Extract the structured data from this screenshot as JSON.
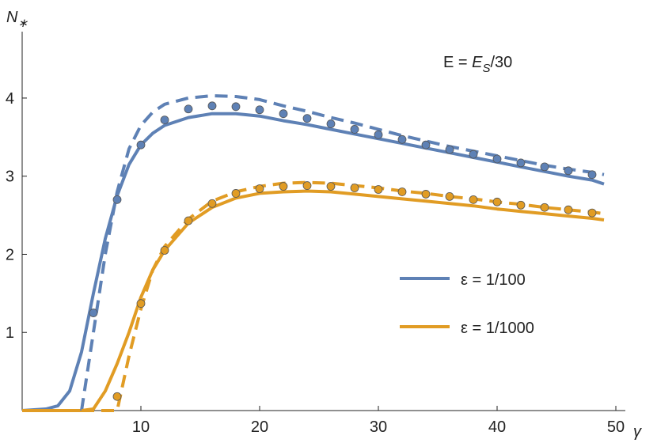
{
  "chart_data": {
    "type": "line",
    "y_label": "N",
    "y_label_sub": "∗",
    "x_label": "γ",
    "annotation": [
      "E = ",
      "E",
      "S",
      "/30"
    ],
    "xlim": [
      0,
      50.8
    ],
    "ylim": [
      0,
      4.85
    ],
    "xticks": [
      10,
      20,
      30,
      40,
      50
    ],
    "yticks": [
      1,
      2,
      3,
      4
    ],
    "legend": "center right",
    "series": [
      {
        "name": "ε = 1/100",
        "color": "#5e81b5",
        "style": "solid",
        "x": [
          0,
          1,
          2,
          3,
          4,
          5,
          6,
          7,
          8,
          9,
          10,
          11,
          12,
          14,
          16,
          18,
          20,
          22,
          24,
          26,
          28,
          30,
          32,
          34,
          36,
          38,
          40,
          42,
          44,
          46,
          48,
          49
        ],
        "values": [
          0,
          0.01,
          0.02,
          0.06,
          0.25,
          0.75,
          1.5,
          2.2,
          2.75,
          3.15,
          3.4,
          3.55,
          3.65,
          3.75,
          3.8,
          3.8,
          3.77,
          3.71,
          3.66,
          3.6,
          3.54,
          3.48,
          3.42,
          3.36,
          3.3,
          3.24,
          3.18,
          3.12,
          3.06,
          3.0,
          2.95,
          2.9
        ]
      },
      {
        "name": "ε = 1/1000",
        "color": "#e19c24",
        "style": "solid",
        "x": [
          0,
          1,
          2,
          3,
          4,
          5,
          6,
          7,
          8,
          9,
          10,
          11,
          12,
          14,
          16,
          18,
          20,
          22,
          24,
          26,
          28,
          30,
          32,
          34,
          36,
          38,
          40,
          42,
          44,
          46,
          48,
          49
        ],
        "values": [
          0,
          0,
          0,
          0,
          0,
          0,
          0.02,
          0.25,
          0.6,
          1.0,
          1.45,
          1.8,
          2.05,
          2.4,
          2.6,
          2.72,
          2.78,
          2.8,
          2.81,
          2.8,
          2.77,
          2.74,
          2.71,
          2.68,
          2.65,
          2.62,
          2.58,
          2.55,
          2.52,
          2.49,
          2.46,
          2.44
        ]
      },
      {
        "color": "#5e81b5",
        "style": "dashed",
        "x": [
          0,
          5,
          6,
          7,
          8,
          9,
          10,
          11,
          12,
          14,
          16,
          18,
          20,
          22,
          24,
          26,
          28,
          30,
          32,
          34,
          36,
          38,
          40,
          42,
          44,
          46,
          48,
          49
        ],
        "values": [
          0,
          0,
          1.0,
          2.0,
          2.8,
          3.35,
          3.65,
          3.82,
          3.92,
          4.0,
          4.03,
          4.02,
          3.98,
          3.9,
          3.83,
          3.75,
          3.68,
          3.6,
          3.52,
          3.45,
          3.38,
          3.32,
          3.26,
          3.2,
          3.14,
          3.09,
          3.05,
          3.02
        ]
      },
      {
        "color": "#e19c24",
        "style": "dashed",
        "x": [
          0,
          8,
          9,
          10,
          11,
          12,
          14,
          16,
          18,
          20,
          22,
          24,
          26,
          28,
          30,
          32,
          34,
          36,
          38,
          40,
          42,
          44,
          46,
          48,
          49
        ],
        "values": [
          0,
          0,
          0.7,
          1.3,
          1.8,
          2.1,
          2.45,
          2.68,
          2.8,
          2.87,
          2.91,
          2.92,
          2.91,
          2.88,
          2.85,
          2.81,
          2.78,
          2.74,
          2.71,
          2.67,
          2.64,
          2.6,
          2.57,
          2.54,
          2.52
        ]
      },
      {
        "color": "#5e81b5",
        "style": "dots",
        "x": [
          6,
          8,
          10,
          12,
          14,
          16,
          18,
          20,
          22,
          24,
          26,
          28,
          30,
          32,
          34,
          36,
          38,
          40,
          42,
          44,
          46,
          48
        ],
        "values": [
          1.25,
          2.7,
          3.4,
          3.72,
          3.86,
          3.9,
          3.89,
          3.85,
          3.8,
          3.74,
          3.67,
          3.6,
          3.53,
          3.47,
          3.4,
          3.34,
          3.28,
          3.22,
          3.17,
          3.12,
          3.07,
          3.02
        ]
      },
      {
        "color": "#e19c24",
        "style": "dots",
        "x": [
          8,
          10,
          12,
          14,
          16,
          18,
          20,
          22,
          24,
          26,
          28,
          30,
          32,
          34,
          36,
          38,
          40,
          42,
          44,
          46,
          48
        ],
        "values": [
          0.18,
          1.37,
          2.05,
          2.43,
          2.65,
          2.78,
          2.84,
          2.87,
          2.88,
          2.87,
          2.85,
          2.83,
          2.8,
          2.77,
          2.74,
          2.7,
          2.67,
          2.63,
          2.6,
          2.57,
          2.53
        ]
      }
    ]
  }
}
